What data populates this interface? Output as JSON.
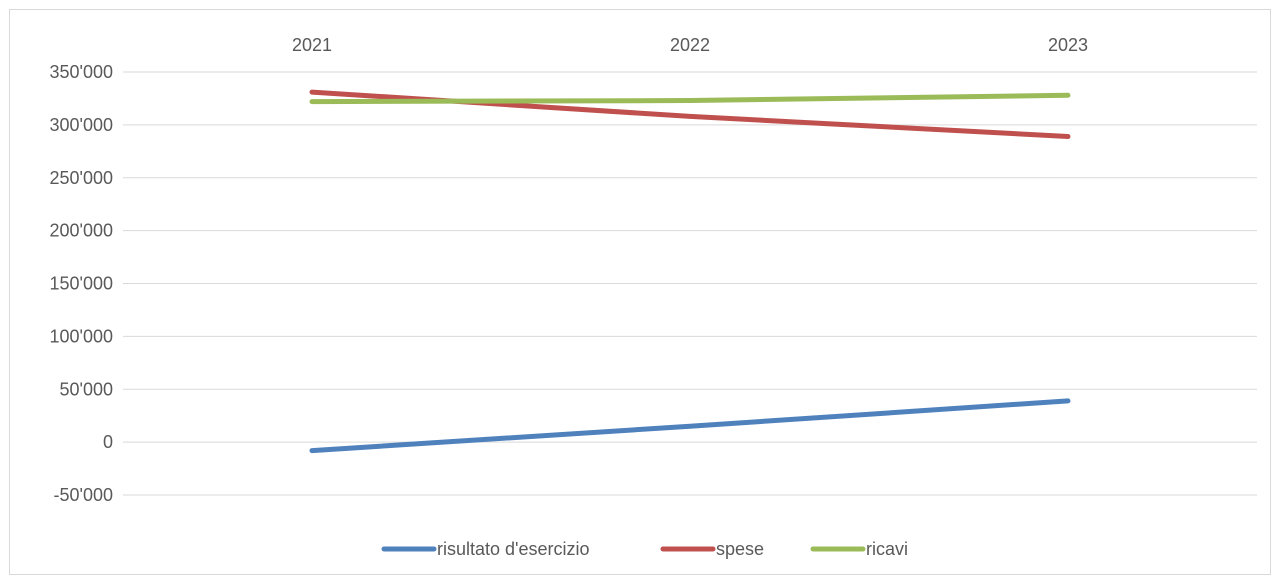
{
  "chart_data": {
    "type": "line",
    "title": "",
    "xlabel": "",
    "ylabel": "",
    "categories": [
      "2021",
      "2022",
      "2023"
    ],
    "ylim": [
      -50000,
      350000
    ],
    "y_ticks": [
      350000,
      300000,
      250000,
      200000,
      150000,
      100000,
      50000,
      0,
      -50000
    ],
    "y_tick_labels": [
      "350'000",
      "300'000",
      "250'000",
      "200'000",
      "150'000",
      "100'000",
      "50'000",
      "0",
      "-50'000"
    ],
    "x_axis_position": "top",
    "grid": true,
    "legend_position": "bottom",
    "series": [
      {
        "name": "risultato d'esercizio",
        "color": "#4f81bd",
        "values": [
          -8000,
          15000,
          39000
        ]
      },
      {
        "name": "spese",
        "color": "#c0504d",
        "values": [
          331000,
          308000,
          289000
        ]
      },
      {
        "name": "ricavi",
        "color": "#9bbb59",
        "values": [
          322000,
          323000,
          328000
        ]
      }
    ]
  }
}
